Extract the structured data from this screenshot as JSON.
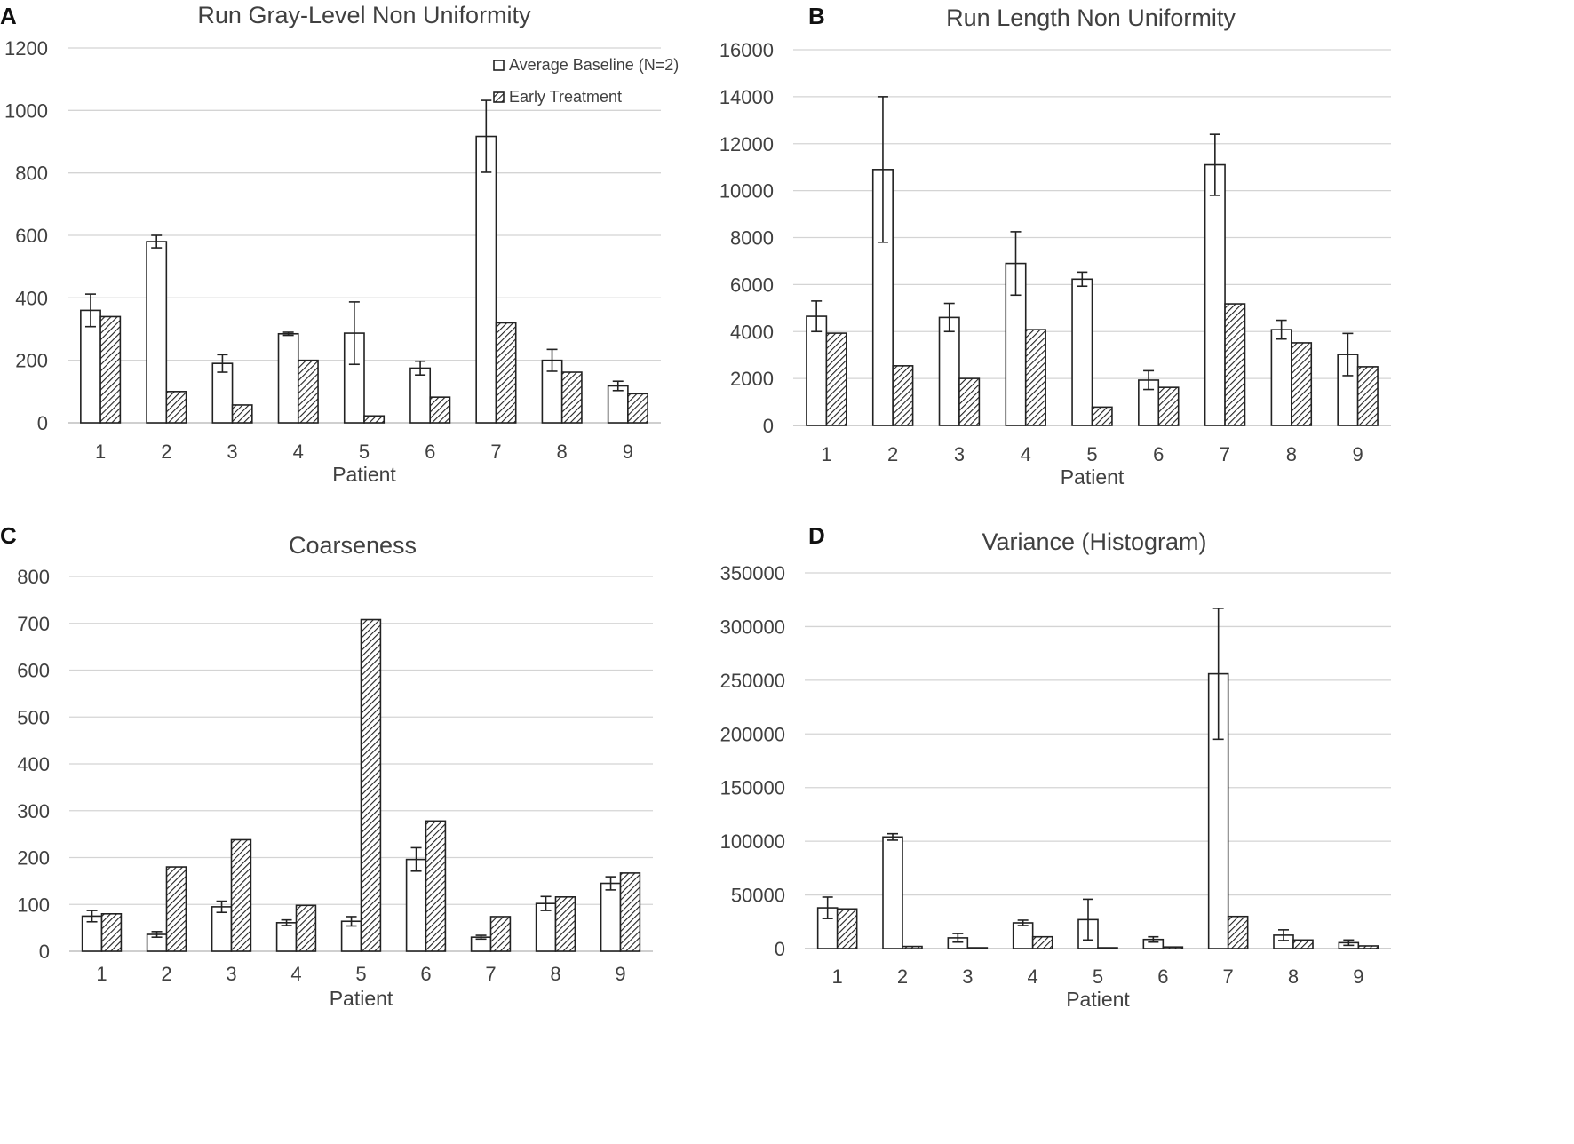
{
  "chart_data": [
    {
      "type": "bar",
      "panel": "A",
      "title": "Run Gray-Level Non Uniformity",
      "xlabel": "Patient",
      "ylabel": "",
      "ylim": [
        0,
        1200
      ],
      "yticks": [
        0,
        200,
        400,
        600,
        800,
        1000,
        1200
      ],
      "categories": [
        "1",
        "2",
        "3",
        "4",
        "5",
        "6",
        "7",
        "8",
        "9"
      ],
      "legend": {
        "position": "top-right",
        "entries": [
          "Average Baseline (N=2)",
          "Early Treatment"
        ]
      },
      "series": [
        {
          "name": "Average Baseline (N=2)",
          "style": "open",
          "values": [
            360,
            580,
            190,
            285,
            287,
            175,
            917,
            200,
            118
          ],
          "errors": [
            52,
            20,
            28,
            5,
            100,
            22,
            115,
            35,
            15
          ]
        },
        {
          "name": "Early Treatment",
          "style": "hatched",
          "values": [
            340,
            100,
            57,
            200,
            22,
            82,
            320,
            162,
            93
          ],
          "errors": []
        }
      ]
    },
    {
      "type": "bar",
      "panel": "B",
      "title": "Run Length Non Uniformity",
      "xlabel": "Patient",
      "ylabel": "",
      "ylim": [
        0,
        16000
      ],
      "yticks": [
        0,
        2000,
        4000,
        6000,
        8000,
        10000,
        12000,
        14000,
        16000
      ],
      "categories": [
        "1",
        "2",
        "3",
        "4",
        "5",
        "6",
        "7",
        "8",
        "9"
      ],
      "legend": null,
      "series": [
        {
          "name": "Average Baseline (N=2)",
          "style": "open",
          "values": [
            4650,
            10900,
            4600,
            6900,
            6230,
            1930,
            11100,
            4080,
            3020
          ],
          "errors": [
            650,
            3100,
            600,
            1350,
            300,
            400,
            1300,
            400,
            900
          ]
        },
        {
          "name": "Early Treatment",
          "style": "hatched",
          "values": [
            3930,
            2540,
            2000,
            4080,
            780,
            1620,
            5180,
            3520,
            2500
          ],
          "errors": []
        }
      ]
    },
    {
      "type": "bar",
      "panel": "C",
      "title": "Coarseness",
      "xlabel": "Patient",
      "ylabel": "",
      "ylim": [
        0,
        800
      ],
      "yticks": [
        0,
        100,
        200,
        300,
        400,
        500,
        600,
        700,
        800
      ],
      "categories": [
        "1",
        "2",
        "3",
        "4",
        "5",
        "6",
        "7",
        "8",
        "9"
      ],
      "legend": null,
      "series": [
        {
          "name": "Average Baseline (N=2)",
          "style": "open",
          "values": [
            75,
            36,
            95,
            61,
            64,
            196,
            30,
            102,
            145
          ],
          "errors": [
            12,
            6,
            12,
            6,
            10,
            25,
            4,
            15,
            14
          ]
        },
        {
          "name": "Early Treatment",
          "style": "hatched",
          "values": [
            80,
            180,
            238,
            98,
            708,
            278,
            74,
            116,
            167
          ],
          "errors": []
        }
      ]
    },
    {
      "type": "bar",
      "panel": "D",
      "title": "Variance (Histogram)",
      "xlabel": "Patient",
      "ylabel": "",
      "ylim": [
        0,
        350000
      ],
      "yticks": [
        0,
        50000,
        100000,
        150000,
        200000,
        250000,
        300000,
        350000
      ],
      "categories": [
        "1",
        "2",
        "3",
        "4",
        "5",
        "6",
        "7",
        "8",
        "9"
      ],
      "legend": null,
      "series": [
        {
          "name": "Average Baseline (N=2)",
          "style": "open",
          "values": [
            38000,
            104000,
            10000,
            24000,
            27000,
            8500,
            256000,
            12500,
            5500
          ],
          "errors": [
            10000,
            3000,
            4000,
            2500,
            19000,
            2500,
            61000,
            5000,
            2500
          ]
        },
        {
          "name": "Early Treatment",
          "style": "hatched",
          "values": [
            37000,
            2000,
            800,
            11000,
            800,
            1500,
            30000,
            8000,
            2500
          ],
          "errors": []
        }
      ]
    }
  ]
}
